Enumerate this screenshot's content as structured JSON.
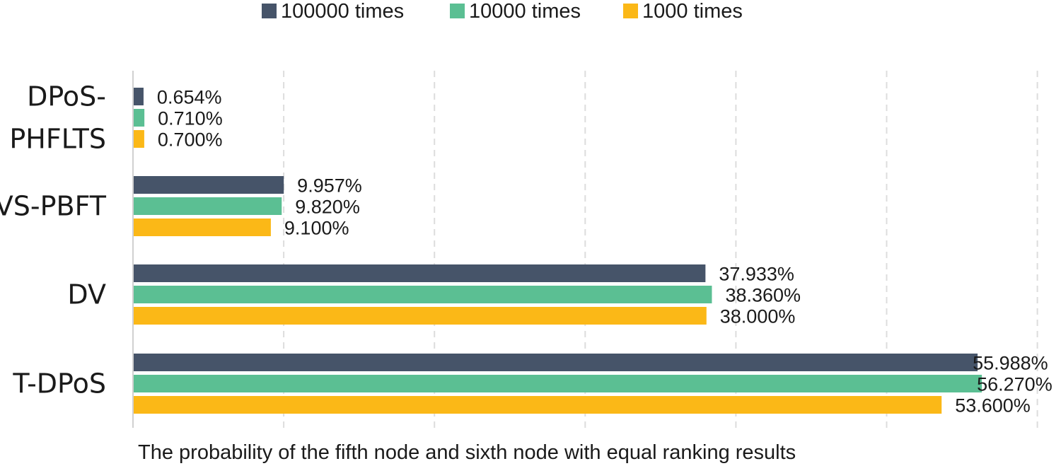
{
  "chart_data": {
    "type": "bar",
    "orientation": "horizontal",
    "title": "",
    "xlabel": "The probability of the fifth node and sixth node with equal ranking results",
    "ylabel": "",
    "xlim": [
      0,
      60
    ],
    "grid": true,
    "legend_position": "top",
    "categories": [
      [
        "DPoS-",
        "PHFLTS"
      ],
      [
        "VS-PBFT"
      ],
      [
        "DV"
      ],
      [
        "T-DPoS"
      ]
    ],
    "series": [
      {
        "name": "100000 times",
        "color": "#465469",
        "values": [
          0.654,
          9.957,
          37.933,
          55.988
        ],
        "labels": [
          "0.654%",
          "9.957%",
          "37.933%",
          "55.988%"
        ]
      },
      {
        "name": "10000 times",
        "color": "#5bbf93",
        "values": [
          0.71,
          9.82,
          38.36,
          56.27
        ],
        "labels": [
          "0.710%",
          "9.820%",
          "38.360%",
          "56.270%"
        ]
      },
      {
        "name": "1000 times",
        "color": "#fbb817",
        "values": [
          0.7,
          9.1,
          38.0,
          53.6
        ],
        "labels": [
          "0.700%",
          "9.100%",
          "38.000%",
          "53.600%"
        ]
      }
    ]
  }
}
